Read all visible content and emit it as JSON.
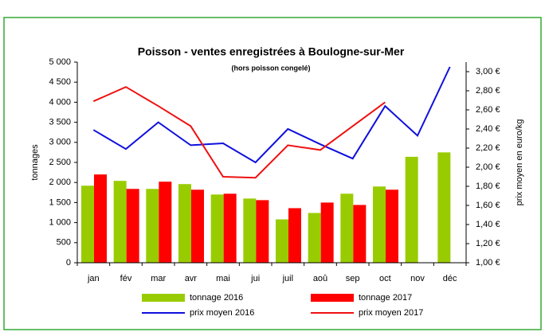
{
  "chart_data": {
    "type": "bar",
    "title": "Poisson - ventes enregistrées à Boulogne-sur-Mer",
    "subtitle": "(hors poisson congelé)",
    "y_label": "tonnages",
    "y2_label": "prix moyen en euro/kg",
    "categories": [
      "jan",
      "fév",
      "mar",
      "avr",
      "mai",
      "jui",
      "juil",
      "aoû",
      "sep",
      "oct",
      "nov",
      "déc"
    ],
    "series": [
      {
        "name": "tonnage 2016",
        "type": "bar",
        "color": "#99cc00",
        "values": [
          1920,
          2040,
          1840,
          1960,
          1700,
          1600,
          1080,
          1240,
          1720,
          1900,
          2640,
          2750
        ]
      },
      {
        "name": "tonnage 2017",
        "type": "bar",
        "color": "#ff0000",
        "values": [
          2200,
          1840,
          2020,
          1820,
          1720,
          1560,
          1360,
          1500,
          1440,
          1820,
          null,
          null
        ]
      },
      {
        "name": "prix moyen 2016",
        "type": "line",
        "axis": "y2",
        "color": "#1010dd",
        "values": [
          2.39,
          2.19,
          2.47,
          2.23,
          2.25,
          2.05,
          2.4,
          2.24,
          2.09,
          2.64,
          2.33,
          3.05
        ]
      },
      {
        "name": "prix moyen 2017",
        "type": "line",
        "axis": "y2",
        "color": "#ee1111",
        "values": [
          2.69,
          2.84,
          2.64,
          2.43,
          1.9,
          1.89,
          2.23,
          2.18,
          2.43,
          2.68,
          null,
          null
        ]
      }
    ],
    "ylim": [
      0,
      5000
    ],
    "yticks": [
      0,
      500,
      {
        "value": 1000,
        "label": "1 000"
      },
      {
        "value": 1500,
        "label": "1 500"
      },
      {
        "value": 2000,
        "label": "2 000"
      },
      {
        "value": 2500,
        "label": "2 500"
      },
      {
        "value": 3000,
        "label": "3 000"
      },
      {
        "value": 3500,
        "label": "3 500"
      },
      {
        "value": 4000,
        "label": "4 000"
      },
      {
        "value": 4500,
        "label": "4 500"
      },
      {
        "value": 5000,
        "label": "5 000"
      }
    ],
    "y2lim": [
      1,
      3.1
    ],
    "y2ticks": [
      {
        "value": 1.0,
        "label": "1,00 €"
      },
      {
        "value": 1.2,
        "label": "1,20 €"
      },
      {
        "value": 1.4,
        "label": "1,40 €"
      },
      {
        "value": 1.6,
        "label": "1,60 €"
      },
      {
        "value": 1.8,
        "label": "1,80 €"
      },
      {
        "value": 2.0,
        "label": "2,00 €"
      },
      {
        "value": 2.2,
        "label": "2,20 €"
      },
      {
        "value": 2.4,
        "label": "2,40 €"
      },
      {
        "value": 2.6,
        "label": "2,60 €"
      },
      {
        "value": 2.8,
        "label": "2,80 €"
      },
      {
        "value": 3.0,
        "label": "3,00 €"
      }
    ],
    "grid": false
  }
}
